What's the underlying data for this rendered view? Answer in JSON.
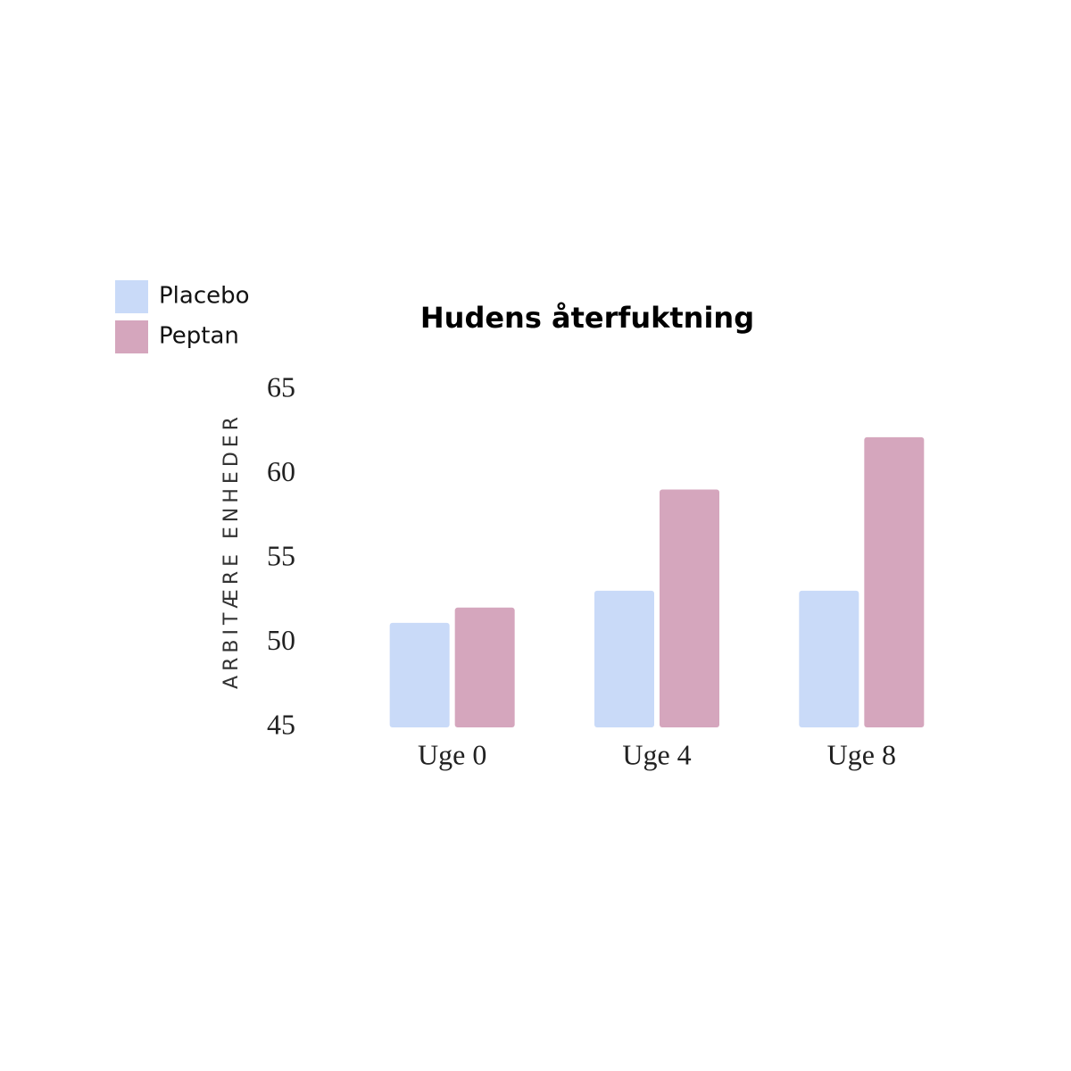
{
  "chart_data": {
    "type": "bar",
    "title": "Hudens återfuktning",
    "y_label": "ARBITÆRE ENHEDER",
    "categories": [
      "Uge 0",
      "Uge 4",
      "Uge 8"
    ],
    "series": [
      {
        "name": "Placebo",
        "color": "#c9daf8",
        "values": [
          51.2,
          53.1,
          53.1
        ]
      },
      {
        "name": "Peptan",
        "color": "#d5a6bd",
        "values": [
          52.1,
          59.1,
          62.2
        ]
      }
    ],
    "ylim": [
      45,
      65
    ],
    "yticks": [
      45,
      50,
      55,
      60,
      65
    ],
    "legend": "top-left"
  }
}
